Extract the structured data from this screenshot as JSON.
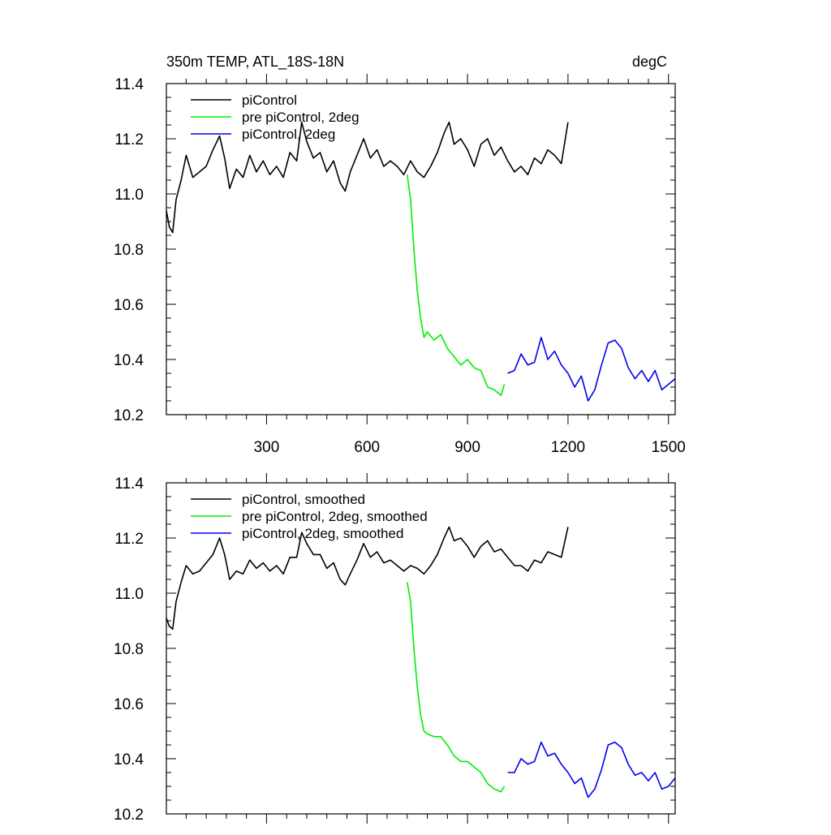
{
  "chart_data": [
    {
      "type": "line",
      "title_left": "350m TEMP, ATL_18S-18N",
      "title_right": "degC",
      "xlabel": "",
      "ylabel": "",
      "xlim": [
        1,
        1520
      ],
      "ylim": [
        10.2,
        11.4
      ],
      "x_ticks": [
        300,
        600,
        900,
        1200,
        1500
      ],
      "x_tick_labels": [
        "300",
        "600",
        "900",
        "1200",
        "1500"
      ],
      "y_ticks": [
        10.2,
        10.4,
        10.6,
        10.8,
        11.0,
        11.2,
        11.4
      ],
      "y_tick_labels": [
        "10.2",
        "10.4",
        "10.6",
        "10.8",
        "11.0",
        "11.2",
        "11.4"
      ],
      "grid": false,
      "legend_position": "top-left",
      "series": [
        {
          "name": "piControl",
          "color": "#000000",
          "x": [
            1,
            10,
            20,
            30,
            45,
            60,
            80,
            100,
            120,
            140,
            160,
            175,
            190,
            210,
            230,
            250,
            270,
            290,
            310,
            330,
            350,
            370,
            390,
            405,
            420,
            440,
            460,
            480,
            500,
            520,
            535,
            550,
            570,
            590,
            610,
            630,
            650,
            670,
            690,
            710,
            730,
            750,
            770,
            790,
            810,
            830,
            845,
            860,
            880,
            900,
            920,
            940,
            960,
            980,
            1000,
            1020,
            1040,
            1060,
            1080,
            1100,
            1120,
            1140,
            1160,
            1180,
            1200
          ],
          "y": [
            10.94,
            10.88,
            10.86,
            10.98,
            11.05,
            11.14,
            11.06,
            11.08,
            11.1,
            11.16,
            11.21,
            11.13,
            11.02,
            11.09,
            11.06,
            11.14,
            11.08,
            11.12,
            11.07,
            11.1,
            11.06,
            11.15,
            11.12,
            11.26,
            11.19,
            11.13,
            11.15,
            11.08,
            11.12,
            11.04,
            11.01,
            11.08,
            11.14,
            11.2,
            11.13,
            11.16,
            11.1,
            11.12,
            11.1,
            11.07,
            11.12,
            11.08,
            11.06,
            11.1,
            11.15,
            11.22,
            11.26,
            11.18,
            11.2,
            11.16,
            11.1,
            11.18,
            11.2,
            11.14,
            11.17,
            11.12,
            11.08,
            11.1,
            11.07,
            11.13,
            11.11,
            11.16,
            11.14,
            11.11,
            11.26
          ]
        },
        {
          "name": "pre piControl, 2deg",
          "color": "#00ee00",
          "x": [
            720,
            730,
            740,
            750,
            760,
            770,
            780,
            800,
            820,
            840,
            860,
            880,
            900,
            920,
            940,
            960,
            980,
            1000,
            1010
          ],
          "y": [
            11.07,
            10.98,
            10.8,
            10.65,
            10.55,
            10.48,
            10.5,
            10.47,
            10.49,
            10.44,
            10.41,
            10.38,
            10.4,
            10.37,
            10.36,
            10.3,
            10.29,
            10.27,
            10.31
          ]
        },
        {
          "name": "piControl, 2deg",
          "color": "#0000ee",
          "x": [
            1020,
            1040,
            1060,
            1080,
            1100,
            1120,
            1140,
            1160,
            1180,
            1200,
            1220,
            1240,
            1260,
            1280,
            1300,
            1320,
            1340,
            1360,
            1380,
            1400,
            1420,
            1440,
            1460,
            1480,
            1500,
            1520
          ],
          "y": [
            10.35,
            10.36,
            10.42,
            10.38,
            10.39,
            10.48,
            10.4,
            10.43,
            10.38,
            10.35,
            10.3,
            10.34,
            10.25,
            10.29,
            10.38,
            10.46,
            10.47,
            10.44,
            10.37,
            10.33,
            10.36,
            10.32,
            10.36,
            10.29,
            10.31,
            10.33
          ]
        }
      ]
    },
    {
      "type": "line",
      "xlabel": "",
      "ylabel": "",
      "xlim": [
        1,
        1520
      ],
      "ylim": [
        10.2,
        11.4
      ],
      "x_ticks": [
        300,
        600,
        900,
        1200,
        1500
      ],
      "x_tick_labels": [],
      "y_ticks": [
        10.2,
        10.4,
        10.6,
        10.8,
        11.0,
        11.2,
        11.4
      ],
      "y_tick_labels": [
        "10.2",
        "10.4",
        "10.6",
        "10.8",
        "11.0",
        "11.2",
        "11.4"
      ],
      "grid": false,
      "legend_position": "top-left",
      "series": [
        {
          "name": "piControl, smoothed",
          "color": "#000000",
          "x": [
            1,
            10,
            20,
            30,
            45,
            60,
            80,
            100,
            120,
            140,
            160,
            175,
            190,
            210,
            230,
            250,
            270,
            290,
            310,
            330,
            350,
            370,
            390,
            405,
            420,
            440,
            460,
            480,
            500,
            520,
            535,
            550,
            570,
            590,
            610,
            630,
            650,
            670,
            690,
            710,
            730,
            750,
            770,
            790,
            810,
            830,
            845,
            860,
            880,
            900,
            920,
            940,
            960,
            980,
            1000,
            1020,
            1040,
            1060,
            1080,
            1100,
            1120,
            1140,
            1160,
            1180,
            1200
          ],
          "y": [
            10.91,
            10.88,
            10.87,
            10.97,
            11.04,
            11.1,
            11.07,
            11.08,
            11.11,
            11.14,
            11.2,
            11.14,
            11.05,
            11.08,
            11.07,
            11.12,
            11.09,
            11.11,
            11.08,
            11.1,
            11.07,
            11.13,
            11.13,
            11.22,
            11.18,
            11.14,
            11.14,
            11.09,
            11.11,
            11.05,
            11.03,
            11.07,
            11.12,
            11.18,
            11.13,
            11.15,
            11.11,
            11.12,
            11.1,
            11.08,
            11.1,
            11.09,
            11.07,
            11.1,
            11.14,
            11.2,
            11.24,
            11.19,
            11.2,
            11.17,
            11.13,
            11.17,
            11.19,
            11.15,
            11.16,
            11.13,
            11.1,
            11.1,
            11.08,
            11.12,
            11.11,
            11.15,
            11.14,
            11.13,
            11.24
          ]
        },
        {
          "name": "pre piControl, 2deg, smoothed",
          "color": "#00ee00",
          "x": [
            720,
            730,
            740,
            750,
            760,
            770,
            780,
            800,
            820,
            840,
            860,
            880,
            900,
            920,
            940,
            960,
            980,
            1000,
            1010
          ],
          "y": [
            11.04,
            10.97,
            10.8,
            10.66,
            10.56,
            10.5,
            10.49,
            10.48,
            10.48,
            10.45,
            10.41,
            10.39,
            10.39,
            10.37,
            10.35,
            10.31,
            10.29,
            10.28,
            10.3
          ]
        },
        {
          "name": "piControl, 2deg, smoothed",
          "color": "#0000ee",
          "x": [
            1020,
            1040,
            1060,
            1080,
            1100,
            1120,
            1140,
            1160,
            1180,
            1200,
            1220,
            1240,
            1260,
            1280,
            1300,
            1320,
            1340,
            1360,
            1380,
            1400,
            1420,
            1440,
            1460,
            1480,
            1500,
            1520
          ],
          "y": [
            10.35,
            10.35,
            10.4,
            10.38,
            10.39,
            10.46,
            10.41,
            10.42,
            10.38,
            10.35,
            10.31,
            10.33,
            10.26,
            10.29,
            10.36,
            10.45,
            10.46,
            10.44,
            10.38,
            10.34,
            10.35,
            10.32,
            10.35,
            10.29,
            10.3,
            10.33
          ]
        }
      ]
    }
  ]
}
